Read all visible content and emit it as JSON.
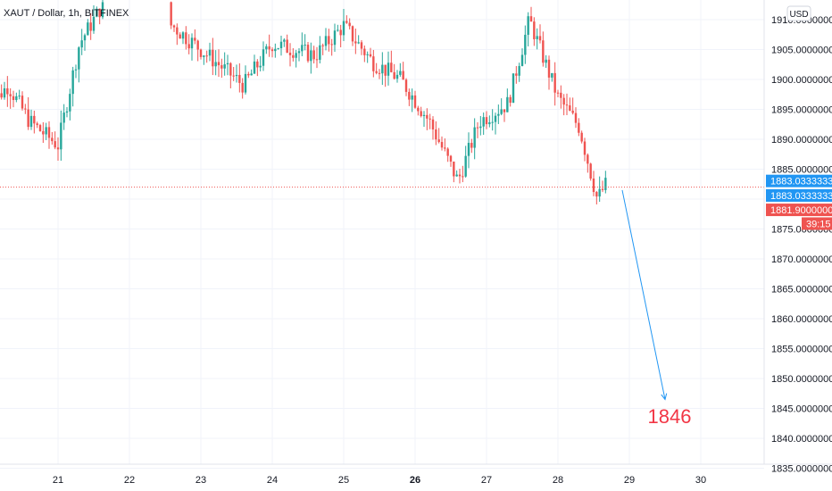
{
  "header": {
    "symbol": "XAUT / Dollar, 1h, BITFINEX"
  },
  "currency_badge": "USD",
  "price_scale": {
    "ticks": [
      "1910.00000000",
      "1905.00000000",
      "1900.00000000",
      "1895.00000000",
      "1890.00000000",
      "1885.00000000",
      "1875.00000000",
      "1870.00000000",
      "1865.00000000",
      "1860.00000000",
      "1855.00000000",
      "1850.00000000",
      "1845.00000000",
      "1840.00000000",
      "1835.00000000"
    ],
    "labels": [
      {
        "text": "1883.03333333",
        "price": 1883.0333,
        "color": "#2196f3"
      },
      {
        "text": "1883.03333333",
        "price": 1880.6,
        "color": "#2196f3"
      },
      {
        "text": "1881.90000000",
        "price": 1878.2,
        "color": "#ef5350"
      },
      {
        "text": "39:15",
        "price": 1875.9,
        "color": "#ef5350"
      }
    ]
  },
  "time_scale": {
    "ticks": [
      "21",
      "22",
      "23",
      "24",
      "25",
      "26",
      "27",
      "28",
      "29",
      "30"
    ],
    "bold": [
      "26"
    ]
  },
  "annotation": {
    "target_text": "1846",
    "target_color": "#f23645",
    "arrow_color": "#2196f3"
  },
  "colors": {
    "up": "#26a69a",
    "down": "#ef5350",
    "grid": "#f0f3fa",
    "axis_text": "#131722",
    "price_line": "#ef5350"
  },
  "chart_data": {
    "type": "candlestick",
    "title": "XAUT / Dollar, 1h, BITFINEX",
    "y_unit": "USD",
    "ylim": [
      1834,
      1913
    ],
    "x_ticks": [
      "21",
      "22",
      "23",
      "24",
      "25",
      "26",
      "27",
      "28",
      "29",
      "30"
    ],
    "last_price": 1883.03333333,
    "projection_target": 1846,
    "candles_close_trajectory": [
      {
        "day": 20.0,
        "close": 1895
      },
      {
        "day": 20.3,
        "close": 1899
      },
      {
        "day": 20.6,
        "close": 1893
      },
      {
        "day": 21.0,
        "close": 1889
      },
      {
        "day": 21.3,
        "close": 1906
      },
      {
        "day": 21.6,
        "close": 1912
      },
      {
        "day": 22.6,
        "close": 1909
      },
      {
        "day": 23.0,
        "close": 1905
      },
      {
        "day": 23.6,
        "close": 1899
      },
      {
        "day": 24.0,
        "close": 1906
      },
      {
        "day": 24.6,
        "close": 1904
      },
      {
        "day": 25.0,
        "close": 1909
      },
      {
        "day": 25.4,
        "close": 1903
      },
      {
        "day": 25.8,
        "close": 1900
      },
      {
        "day": 26.2,
        "close": 1893
      },
      {
        "day": 26.6,
        "close": 1883
      },
      {
        "day": 26.9,
        "close": 1893
      },
      {
        "day": 27.3,
        "close": 1896
      },
      {
        "day": 27.6,
        "close": 1910
      },
      {
        "day": 28.0,
        "close": 1897
      },
      {
        "day": 28.3,
        "close": 1892
      },
      {
        "day": 28.55,
        "close": 1880
      },
      {
        "day": 28.7,
        "close": 1883
      }
    ]
  }
}
